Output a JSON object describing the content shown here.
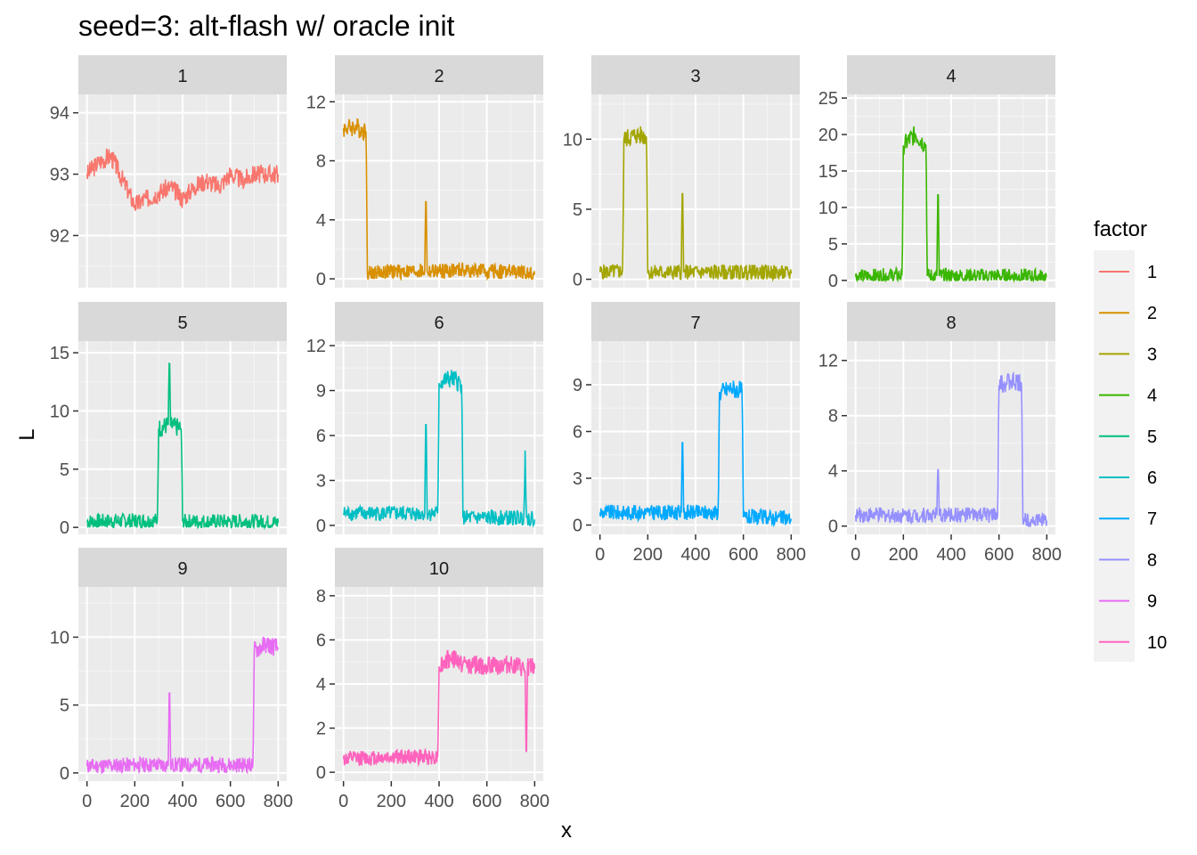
{
  "title": "seed=3: alt-flash w/ oracle init",
  "chart_data": {
    "type": "line",
    "title": "seed=3: alt-flash w/ oracle init",
    "xlabel": "x",
    "ylabel": "L",
    "x_range": [
      0,
      800
    ],
    "x_ticks": [
      0,
      200,
      400,
      600,
      800
    ],
    "grid": true,
    "legend_placement": "right",
    "legend_title": "factor",
    "series": [
      {
        "name": "1",
        "color": "#F8766D",
        "ylim": [
          91.15,
          94.3
        ],
        "y_ticks": [
          92,
          93,
          94
        ],
        "points": [
          [
            0,
            93.0
          ],
          [
            50,
            93.2
          ],
          [
            100,
            93.3
          ],
          [
            150,
            92.9
          ],
          [
            200,
            92.5
          ],
          [
            250,
            92.6
          ],
          [
            300,
            92.7
          ],
          [
            350,
            92.8
          ],
          [
            400,
            92.6
          ],
          [
            450,
            92.8
          ],
          [
            500,
            92.9
          ],
          [
            550,
            92.8
          ],
          [
            600,
            93.0
          ],
          [
            650,
            92.9
          ],
          [
            700,
            93.0
          ],
          [
            750,
            93.0
          ],
          [
            800,
            93.0
          ]
        ]
      },
      {
        "name": "2",
        "color": "#D89000",
        "ylim": [
          -0.6,
          12.5
        ],
        "y_ticks": [
          0,
          4,
          8,
          12
        ],
        "points": [
          [
            0,
            10.2
          ],
          [
            50,
            10.3
          ],
          [
            95,
            10.0
          ],
          [
            100,
            0.4
          ],
          [
            200,
            0.5
          ],
          [
            300,
            0.5
          ],
          [
            340,
            0.5
          ],
          [
            345,
            6.4
          ],
          [
            350,
            0.5
          ],
          [
            400,
            0.5
          ],
          [
            500,
            0.6
          ],
          [
            600,
            0.5
          ],
          [
            700,
            0.5
          ],
          [
            800,
            0.3
          ]
        ]
      },
      {
        "name": "3",
        "color": "#A3A500",
        "ylim": [
          -0.6,
          13.2
        ],
        "y_ticks": [
          0,
          5,
          10
        ],
        "points": [
          [
            0,
            0.5
          ],
          [
            95,
            0.6
          ],
          [
            100,
            10.0
          ],
          [
            150,
            10.3
          ],
          [
            195,
            10.2
          ],
          [
            200,
            0.5
          ],
          [
            300,
            0.5
          ],
          [
            340,
            0.5
          ],
          [
            345,
            7.5
          ],
          [
            350,
            0.5
          ],
          [
            500,
            0.5
          ],
          [
            600,
            0.5
          ],
          [
            700,
            0.5
          ],
          [
            800,
            0.4
          ]
        ]
      },
      {
        "name": "4",
        "color": "#39B600",
        "ylim": [
          -1.0,
          25.5
        ],
        "y_ticks": [
          0,
          5,
          10,
          15,
          20,
          25
        ],
        "points": [
          [
            0,
            0.5
          ],
          [
            195,
            0.7
          ],
          [
            200,
            18.5
          ],
          [
            250,
            20.0
          ],
          [
            295,
            18.5
          ],
          [
            300,
            0.6
          ],
          [
            340,
            0.6
          ],
          [
            345,
            14.5
          ],
          [
            350,
            0.6
          ],
          [
            500,
            0.6
          ],
          [
            650,
            0.6
          ],
          [
            800,
            0.5
          ]
        ]
      },
      {
        "name": "5",
        "color": "#00BF7D",
        "ylim": [
          -0.6,
          16.0
        ],
        "y_ticks": [
          0,
          5,
          10,
          15
        ],
        "points": [
          [
            0,
            0.5
          ],
          [
            295,
            0.6
          ],
          [
            300,
            8.5
          ],
          [
            340,
            8.8
          ],
          [
            345,
            15.4
          ],
          [
            350,
            8.7
          ],
          [
            395,
            8.5
          ],
          [
            400,
            0.5
          ],
          [
            500,
            0.5
          ],
          [
            600,
            0.5
          ],
          [
            700,
            0.5
          ],
          [
            800,
            0.4
          ]
        ]
      },
      {
        "name": "6",
        "color": "#00BFC4",
        "ylim": [
          -0.6,
          12.3
        ],
        "y_ticks": [
          0,
          3,
          6,
          9,
          12
        ],
        "points": [
          [
            0,
            0.8
          ],
          [
            200,
            0.8
          ],
          [
            340,
            0.8
          ],
          [
            345,
            8.2
          ],
          [
            350,
            0.8
          ],
          [
            395,
            0.8
          ],
          [
            400,
            9.5
          ],
          [
            450,
            9.8
          ],
          [
            495,
            9.4
          ],
          [
            500,
            0.5
          ],
          [
            600,
            0.5
          ],
          [
            755,
            0.5
          ],
          [
            760,
            5.0
          ],
          [
            765,
            0.5
          ],
          [
            800,
            0.4
          ]
        ]
      },
      {
        "name": "7",
        "color": "#00A9FF",
        "ylim": [
          -0.6,
          11.8
        ],
        "y_ticks": [
          0,
          3,
          6,
          9
        ],
        "points": [
          [
            0,
            0.8
          ],
          [
            200,
            0.8
          ],
          [
            340,
            0.8
          ],
          [
            345,
            6.4
          ],
          [
            350,
            0.8
          ],
          [
            495,
            0.8
          ],
          [
            500,
            8.5
          ],
          [
            550,
            8.8
          ],
          [
            595,
            8.6
          ],
          [
            600,
            0.5
          ],
          [
            700,
            0.5
          ],
          [
            800,
            0.4
          ]
        ]
      },
      {
        "name": "8",
        "color": "#9590FF",
        "ylim": [
          -0.6,
          13.4
        ],
        "y_ticks": [
          0,
          4,
          8,
          12
        ],
        "points": [
          [
            0,
            0.8
          ],
          [
            200,
            0.8
          ],
          [
            340,
            0.8
          ],
          [
            345,
            4.9
          ],
          [
            350,
            0.8
          ],
          [
            595,
            0.8
          ],
          [
            600,
            10.2
          ],
          [
            650,
            10.5
          ],
          [
            695,
            10.3
          ],
          [
            700,
            0.5
          ],
          [
            800,
            0.4
          ]
        ]
      },
      {
        "name": "9",
        "color": "#E76BF3",
        "ylim": [
          -0.6,
          13.7
        ],
        "y_ticks": [
          0,
          5,
          10
        ],
        "points": [
          [
            0,
            0.5
          ],
          [
            200,
            0.6
          ],
          [
            340,
            0.6
          ],
          [
            345,
            7.2
          ],
          [
            350,
            0.6
          ],
          [
            500,
            0.6
          ],
          [
            695,
            0.6
          ],
          [
            700,
            9.0
          ],
          [
            750,
            9.5
          ],
          [
            800,
            9.2
          ]
        ]
      },
      {
        "name": "10",
        "color": "#FF62BC",
        "ylim": [
          -0.4,
          8.4
        ],
        "y_ticks": [
          0,
          2,
          4,
          6,
          8
        ],
        "points": [
          [
            0,
            0.6
          ],
          [
            200,
            0.7
          ],
          [
            395,
            0.7
          ],
          [
            400,
            4.8
          ],
          [
            450,
            5.2
          ],
          [
            500,
            4.9
          ],
          [
            600,
            4.8
          ],
          [
            700,
            4.9
          ],
          [
            760,
            4.6
          ],
          [
            765,
            0.0
          ],
          [
            770,
            4.8
          ],
          [
            800,
            4.7
          ]
        ]
      }
    ]
  }
}
